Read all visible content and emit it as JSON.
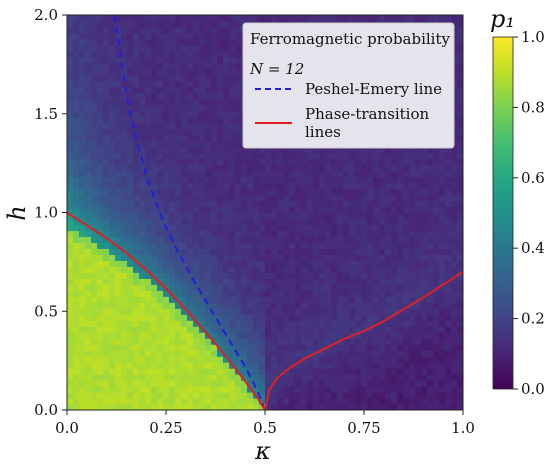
{
  "chart_data": {
    "type": "heatmap",
    "xlabel": "κ",
    "ylabel": "h",
    "xlim": [
      0.0,
      1.0
    ],
    "ylim": [
      0.0,
      2.0
    ],
    "x_ticks": [
      "0.0",
      "0.25",
      "0.5",
      "0.75",
      "1.0"
    ],
    "x_tick_values": [
      0.0,
      0.25,
      0.5,
      0.75,
      1.0
    ],
    "y_ticks": [
      "0.0",
      "0.5",
      "1.0",
      "1.5",
      "2.0"
    ],
    "y_tick_values": [
      0.0,
      0.5,
      1.0,
      1.5,
      2.0
    ],
    "colormap": "viridis",
    "colorbar": {
      "label": "p₁",
      "range": [
        0.0,
        1.0
      ],
      "ticks": [
        "0.0",
        "0.2",
        "0.4",
        "0.6",
        "0.8",
        "1.0"
      ],
      "tick_values": [
        0.0,
        0.2,
        0.4,
        0.6,
        0.8,
        1.0
      ]
    },
    "legend": {
      "title": "Ferromagnetic probability",
      "subtitle": "N = 12",
      "location": "top-right",
      "entries": [
        {
          "label": "Peshel-Emery line",
          "style": "dashed",
          "color": "#1f1fe0"
        },
        {
          "label_line1": "Phase-transition",
          "label_line2": "lines",
          "style": "solid",
          "color": "#e02020"
        }
      ]
    },
    "series": [
      {
        "name": "Peshel-Emery line",
        "style": "dashed",
        "color": "#1f1fe0",
        "x": [
          0.12,
          0.15,
          0.18,
          0.21,
          0.24,
          0.27,
          0.3,
          0.33,
          0.36,
          0.39,
          0.42,
          0.45,
          0.48,
          0.5
        ],
        "y": [
          2.0,
          1.6,
          1.33,
          1.13,
          0.97,
          0.84,
          0.73,
          0.62,
          0.52,
          0.42,
          0.32,
          0.22,
          0.1,
          0.0
        ]
      },
      {
        "name": "Phase-transition lines",
        "style": "solid",
        "color": "#e02020",
        "x": [
          0.0,
          0.05,
          0.1,
          0.15,
          0.2,
          0.25,
          0.3,
          0.35,
          0.4,
          0.45,
          0.48,
          0.5
        ],
        "y": [
          1.0,
          0.935,
          0.87,
          0.795,
          0.71,
          0.615,
          0.51,
          0.395,
          0.275,
          0.145,
          0.065,
          0.0
        ]
      },
      {
        "name": "Phase-transition lines",
        "style": "solid",
        "color": "#e02020",
        "x": [
          0.5,
          0.51,
          0.53,
          0.56,
          0.6,
          0.65,
          0.7,
          0.75,
          0.8,
          0.85,
          0.9,
          0.95,
          1.0
        ],
        "y": [
          0.0,
          0.1,
          0.16,
          0.21,
          0.26,
          0.31,
          0.36,
          0.4,
          0.45,
          0.51,
          0.57,
          0.635,
          0.7
        ]
      }
    ],
    "heatmap_levels": {
      "ferro_region": 0.88,
      "ferro_edge": 0.75,
      "transition_band": 0.45,
      "upper_left_diffuse": 0.3,
      "background": 0.12,
      "right_region": 0.08
    }
  }
}
